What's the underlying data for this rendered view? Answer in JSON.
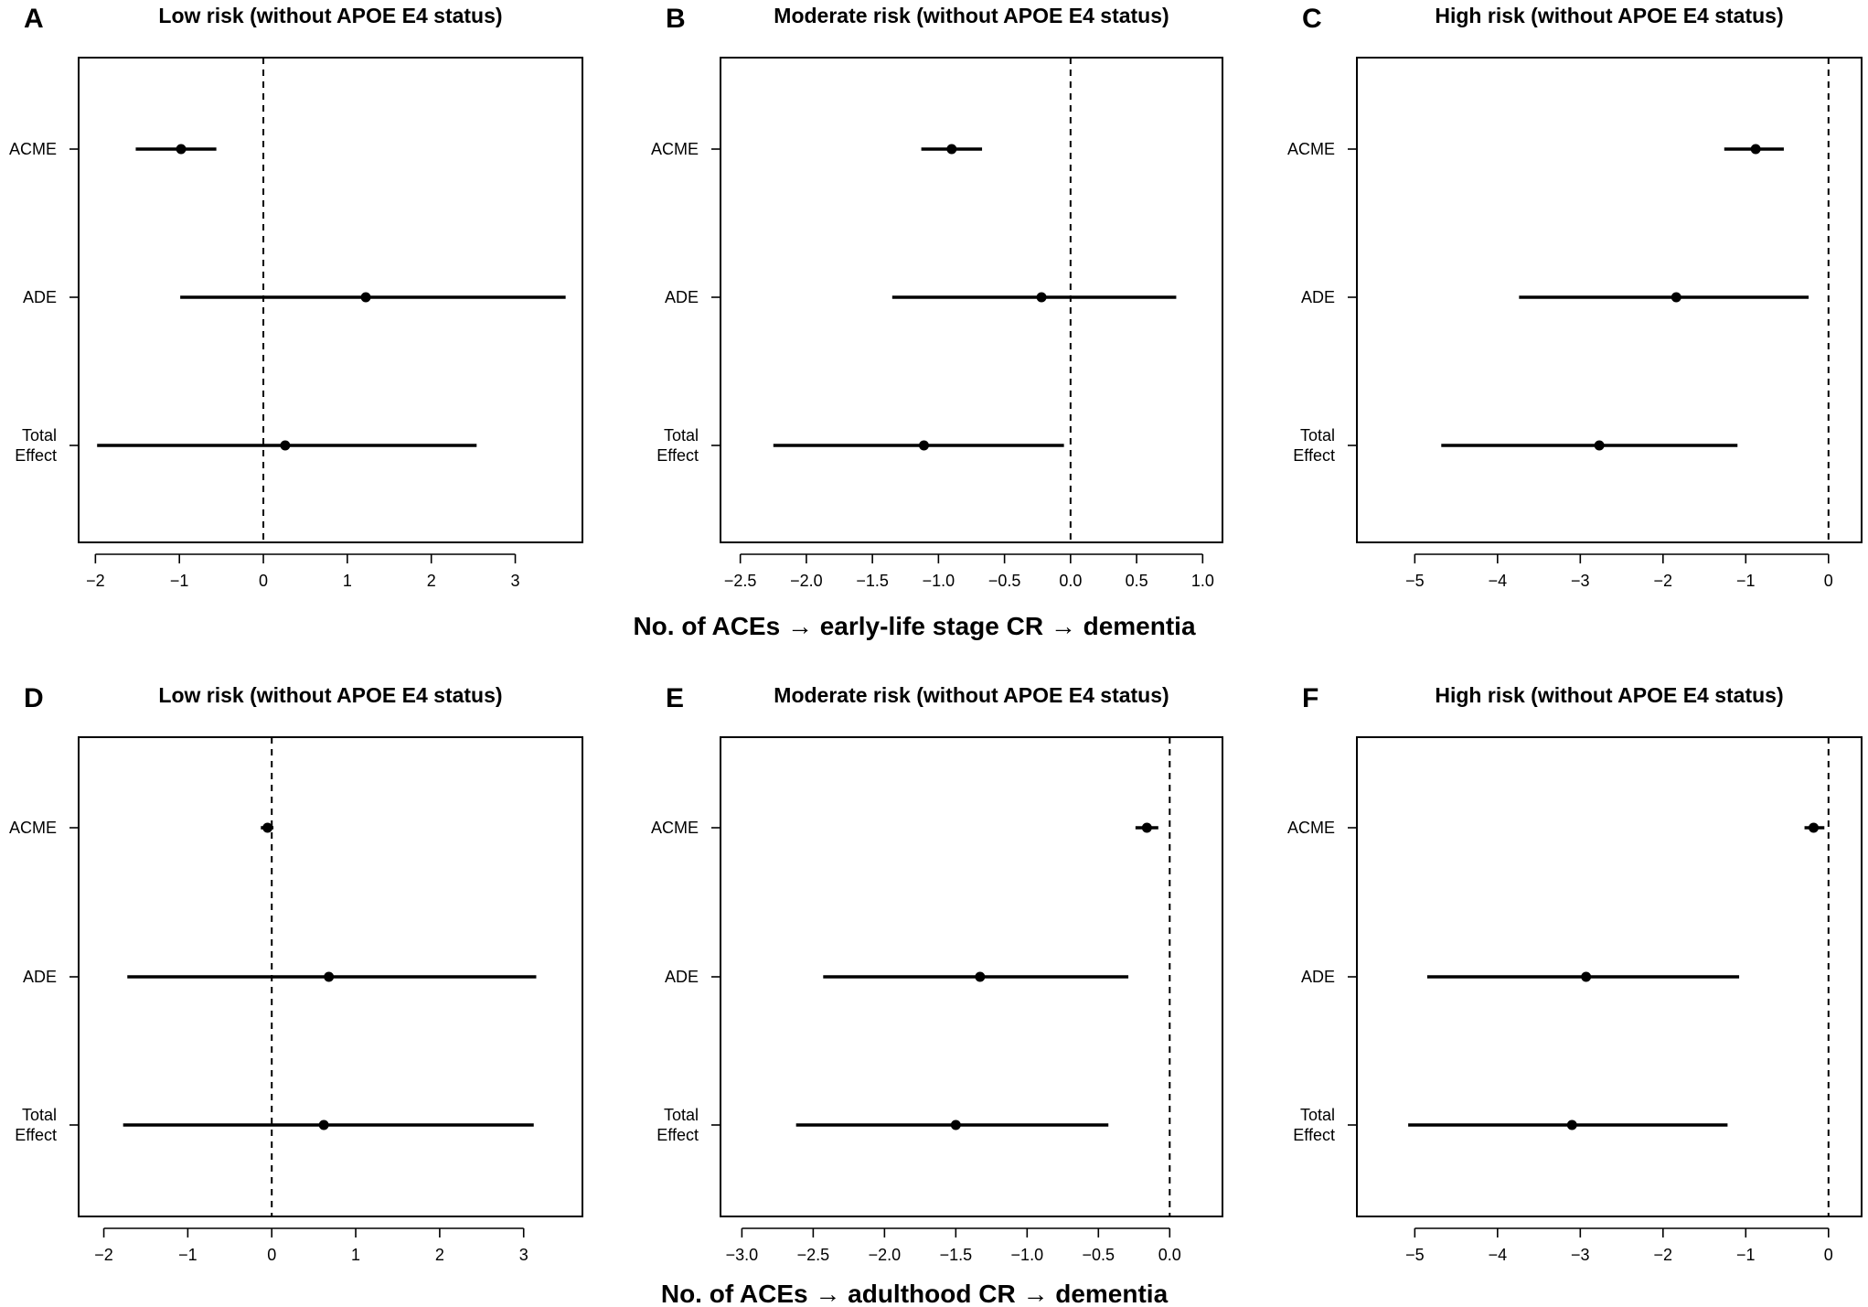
{
  "figure": {
    "row_labels": [
      "No. of ACEs → early-life stage CR → dementia",
      "No. of ACEs → adulthood CR → dementia"
    ]
  },
  "chart_data": [
    {
      "type": "forest",
      "panel_label": "A",
      "title": "Low risk (without APOE E4 status)",
      "categories": [
        "ACME",
        "ADE",
        "Total Effect"
      ],
      "estimates": [
        -0.98,
        1.22,
        0.26
      ],
      "ci_lower": [
        -1.52,
        -0.99,
        -1.98
      ],
      "ci_upper": [
        -0.56,
        3.6,
        2.54
      ],
      "xlim": [
        -2.2,
        3.8
      ],
      "xticks": [
        -2,
        -1,
        0,
        1,
        2,
        3
      ],
      "xtick_labels": [
        "−2",
        "−1",
        "0",
        "1",
        "2",
        "3"
      ],
      "reference_line": 0
    },
    {
      "type": "forest",
      "panel_label": "B",
      "title": "Moderate risk (without APOE E4 status)",
      "categories": [
        "ACME",
        "ADE",
        "Total Effect"
      ],
      "estimates": [
        -0.9,
        -0.22,
        -1.11
      ],
      "ci_lower": [
        -1.13,
        -1.35,
        -2.25
      ],
      "ci_upper": [
        -0.67,
        0.8,
        -0.05
      ],
      "xlim": [
        -2.65,
        1.15
      ],
      "xticks": [
        -2.5,
        -2.0,
        -1.5,
        -1.0,
        -0.5,
        0.0,
        0.5,
        1.0
      ],
      "xtick_labels": [
        "−2.5",
        "−2.0",
        "−1.5",
        "−1.0",
        "−0.5",
        "0.0",
        "0.5",
        "1.0"
      ],
      "reference_line": 0
    },
    {
      "type": "forest",
      "panel_label": "C",
      "title": "High risk (without APOE E4 status)",
      "categories": [
        "ACME",
        "ADE",
        "Total Effect"
      ],
      "estimates": [
        -0.88,
        -1.84,
        -2.77
      ],
      "ci_lower": [
        -1.26,
        -3.74,
        -4.68
      ],
      "ci_upper": [
        -0.54,
        -0.24,
        -1.1
      ],
      "xlim": [
        -5.7,
        0.4
      ],
      "xticks": [
        -5,
        -4,
        -3,
        -2,
        -1,
        0
      ],
      "xtick_labels": [
        "−5",
        "−4",
        "−3",
        "−2",
        "−1",
        "0"
      ],
      "reference_line": 0
    },
    {
      "type": "forest",
      "panel_label": "D",
      "title": "Low risk (without APOE E4 status)",
      "categories": [
        "ACME",
        "ADE",
        "Total Effect"
      ],
      "estimates": [
        -0.05,
        0.68,
        0.62
      ],
      "ci_lower": [
        -0.13,
        -1.72,
        -1.77
      ],
      "ci_upper": [
        0.02,
        3.15,
        3.12
      ],
      "xlim": [
        -2.3,
        3.7
      ],
      "xticks": [
        -2,
        -1,
        0,
        1,
        2,
        3
      ],
      "xtick_labels": [
        "−2",
        "−1",
        "0",
        "1",
        "2",
        "3"
      ],
      "reference_line": 0
    },
    {
      "type": "forest",
      "panel_label": "E",
      "title": "Moderate risk (without APOE E4 status)",
      "categories": [
        "ACME",
        "ADE",
        "Total Effect"
      ],
      "estimates": [
        -0.16,
        -1.33,
        -1.5
      ],
      "ci_lower": [
        -0.24,
        -2.43,
        -2.62
      ],
      "ci_upper": [
        -0.08,
        -0.29,
        -0.43
      ],
      "xlim": [
        -3.15,
        0.37
      ],
      "xticks": [
        -3.0,
        -2.5,
        -2.0,
        -1.5,
        -1.0,
        -0.5,
        0.0
      ],
      "xtick_labels": [
        "−3.0",
        "−2.5",
        "−2.0",
        "−1.5",
        "−1.0",
        "−0.5",
        "0.0"
      ],
      "reference_line": 0
    },
    {
      "type": "forest",
      "panel_label": "F",
      "title": "High risk (without APOE E4 status)",
      "categories": [
        "ACME",
        "ADE",
        "Total Effect"
      ],
      "estimates": [
        -0.18,
        -2.93,
        -3.1
      ],
      "ci_lower": [
        -0.29,
        -4.85,
        -5.08
      ],
      "ci_upper": [
        -0.05,
        -1.08,
        -1.22
      ],
      "xlim": [
        -5.7,
        0.4
      ],
      "xticks": [
        -5,
        -4,
        -3,
        -2,
        -1,
        0
      ],
      "xtick_labels": [
        "−5",
        "−4",
        "−3",
        "−2",
        "−1",
        "0"
      ],
      "reference_line": 0
    }
  ]
}
